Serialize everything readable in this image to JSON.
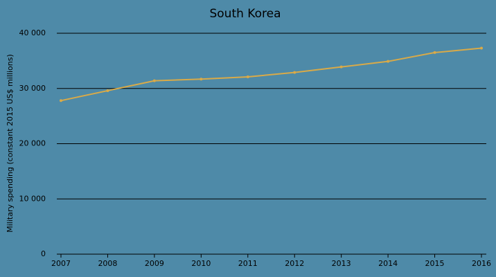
{
  "chart_data": {
    "type": "line",
    "title": "South Korea",
    "y_label": "Military spending (constant 2015 US$ millions)",
    "categories": [
      "2007",
      "2008",
      "2009",
      "2010",
      "2011",
      "2012",
      "2013",
      "2014",
      "2015",
      "2016"
    ],
    "values": [
      27800,
      29600,
      31400,
      31700,
      32100,
      32900,
      33900,
      34900,
      36500,
      37300
    ],
    "color": "#d9aa48",
    "ylim": [
      0,
      40000
    ],
    "yticks": [
      0,
      {
        "value": 10000,
        "label": "10 000"
      },
      {
        "value": 20000,
        "label": "20 000"
      },
      {
        "value": 30000,
        "label": "30 000"
      },
      {
        "value": 40000,
        "label": "40 000"
      }
    ],
    "grid": true
  }
}
